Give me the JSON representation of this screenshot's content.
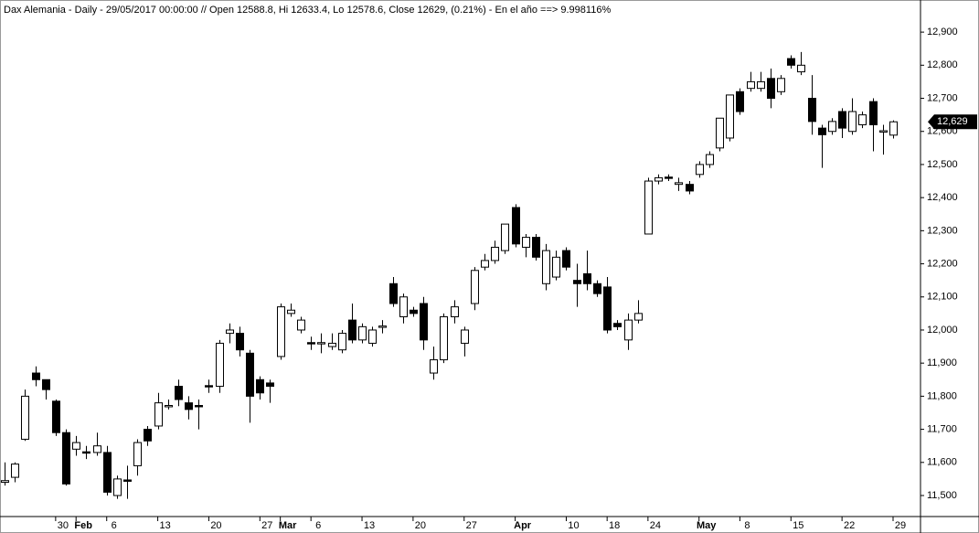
{
  "chart_data": {
    "type": "candlestick",
    "title": "Dax Alemania - Daily - 29/05/2017 00:00:00 // Open 12588.8, Hi 12633.4, Lo 12578.6, Close 12629, (0.21%) - En el año ==> 9.998116%",
    "categories": [
      null,
      null,
      null,
      null,
      null,
      "30",
      null,
      "Feb",
      null,
      null,
      "6",
      null,
      null,
      null,
      null,
      "13",
      null,
      null,
      null,
      null,
      "20",
      null,
      null,
      null,
      null,
      "27",
      null,
      "Mar",
      null,
      null,
      "6",
      null,
      null,
      null,
      null,
      "13",
      null,
      null,
      null,
      null,
      "20",
      null,
      null,
      null,
      null,
      "27",
      null,
      null,
      null,
      null,
      "Apr",
      null,
      null,
      null,
      null,
      "10",
      null,
      null,
      null,
      "18",
      null,
      null,
      null,
      "24",
      null,
      null,
      null,
      null,
      "May",
      null,
      null,
      null,
      "8",
      null,
      null,
      null,
      null,
      "15",
      null,
      null,
      null,
      null,
      "22",
      null,
      null,
      null,
      null,
      "29"
    ],
    "open": [
      11540,
      11555,
      11670,
      11870,
      11850,
      11785,
      11690,
      11640,
      11632,
      11630,
      11630,
      11500,
      11547,
      11590,
      11700,
      11710,
      11768,
      11830,
      11780,
      11772,
      11832,
      11830,
      11990,
      11990,
      11930,
      11850,
      11840,
      11920,
      12050,
      12000,
      11962,
      11958,
      11950,
      11940,
      12030,
      11970,
      11960,
      12008,
      12140,
      12040,
      12060,
      12080,
      11870,
      11910,
      12040,
      11960,
      12080,
      12190,
      12210,
      12240,
      12370,
      12250,
      12280,
      12140,
      12160,
      12240,
      12150,
      12170,
      12140,
      12130,
      12020,
      11970,
      12030,
      12290,
      12450,
      12462,
      12440,
      12440,
      12470,
      12500,
      12550,
      12580,
      12720,
      12730,
      12730,
      12760,
      12720,
      12820,
      12780,
      12700,
      12610,
      12600,
      12660,
      12600,
      12620,
      12690,
      12598,
      12588.8
    ],
    "high": [
      11600,
      11600,
      11820,
      11890,
      11850,
      11790,
      11700,
      11680,
      11650,
      11690,
      11650,
      11560,
      11590,
      11670,
      11710,
      11810,
      11790,
      11850,
      11800,
      11790,
      11850,
      11970,
      12020,
      12010,
      11940,
      11860,
      11850,
      12080,
      12080,
      12040,
      11980,
      11990,
      11990,
      12000,
      12080,
      12020,
      12010,
      12030,
      12160,
      12110,
      12070,
      12100,
      11950,
      12050,
      12090,
      12010,
      12190,
      12230,
      12270,
      12320,
      12380,
      12290,
      12290,
      12260,
      12240,
      12250,
      12200,
      12240,
      12150,
      12160,
      12030,
      12050,
      12090,
      12460,
      12470,
      12470,
      12460,
      12450,
      12510,
      12540,
      12640,
      12710,
      12730,
      12780,
      12780,
      12790,
      12770,
      12830,
      12840,
      12770,
      12620,
      12640,
      12670,
      12700,
      12660,
      12700,
      12620,
      12633.4
    ],
    "low": [
      11530,
      11540,
      11665,
      11830,
      11790,
      11680,
      11530,
      11620,
      11610,
      11620,
      11500,
      11490,
      11490,
      11560,
      11650,
      11700,
      11760,
      11770,
      11730,
      11700,
      11810,
      11810,
      11960,
      11920,
      11720,
      11790,
      11780,
      11910,
      12040,
      11990,
      11940,
      11930,
      11940,
      11930,
      11960,
      11960,
      11950,
      11990,
      12070,
      12020,
      12040,
      11940,
      11850,
      11900,
      12020,
      11920,
      12060,
      12180,
      12200,
      12230,
      12250,
      12220,
      12210,
      12120,
      12150,
      12180,
      12070,
      12120,
      12100,
      11990,
      12000,
      11940,
      12020,
      12290,
      12440,
      12450,
      12420,
      12410,
      12460,
      12490,
      12540,
      12570,
      12650,
      12720,
      12720,
      12670,
      12710,
      12790,
      12770,
      12590,
      12490,
      12590,
      12580,
      12590,
      12610,
      12540,
      12530,
      12578.6
    ],
    "close": [
      11545,
      11595,
      11800,
      11850,
      11820,
      11690,
      11535,
      11660,
      11628,
      11650,
      11510,
      11550,
      11543,
      11660,
      11665,
      11780,
      11772,
      11790,
      11760,
      11768,
      11828,
      11960,
      12000,
      11940,
      11800,
      11810,
      11830,
      12070,
      12060,
      12030,
      11958,
      11962,
      11960,
      11990,
      11970,
      12010,
      12000,
      12012,
      12080,
      12100,
      12050,
      11970,
      11910,
      12040,
      12070,
      12000,
      12180,
      12210,
      12250,
      12320,
      12260,
      12280,
      12220,
      12240,
      12220,
      12190,
      12140,
      12140,
      12110,
      12000,
      12010,
      12030,
      12050,
      12450,
      12460,
      12458,
      12445,
      12420,
      12500,
      12530,
      12640,
      12710,
      12660,
      12750,
      12750,
      12700,
      12760,
      12800,
      12800,
      12630,
      12590,
      12630,
      12610,
      12660,
      12650,
      12620,
      12602,
      12629
    ],
    "last_label": "12,629",
    "up_color": "#ffffff",
    "down_color": "#000000",
    "ylim": [
      11442,
      12997
    ],
    "yticks": [
      {
        "value": 11500,
        "label": "11,500"
      },
      {
        "value": 11600,
        "label": "11,600"
      },
      {
        "value": 11700,
        "label": "11,700"
      },
      {
        "value": 11800,
        "label": "11,800"
      },
      {
        "value": 11900,
        "label": "11,900"
      },
      {
        "value": 12000,
        "label": "12,000"
      },
      {
        "value": 12100,
        "label": "12,100"
      },
      {
        "value": 12200,
        "label": "12,200"
      },
      {
        "value": 12300,
        "label": "12,300"
      },
      {
        "value": 12400,
        "label": "12,400"
      },
      {
        "value": 12500,
        "label": "12,500"
      },
      {
        "value": 12600,
        "label": "12,600"
      },
      {
        "value": 12700,
        "label": "12,700"
      },
      {
        "value": 12800,
        "label": "12,800"
      },
      {
        "value": 12900,
        "label": "12,900"
      }
    ]
  }
}
